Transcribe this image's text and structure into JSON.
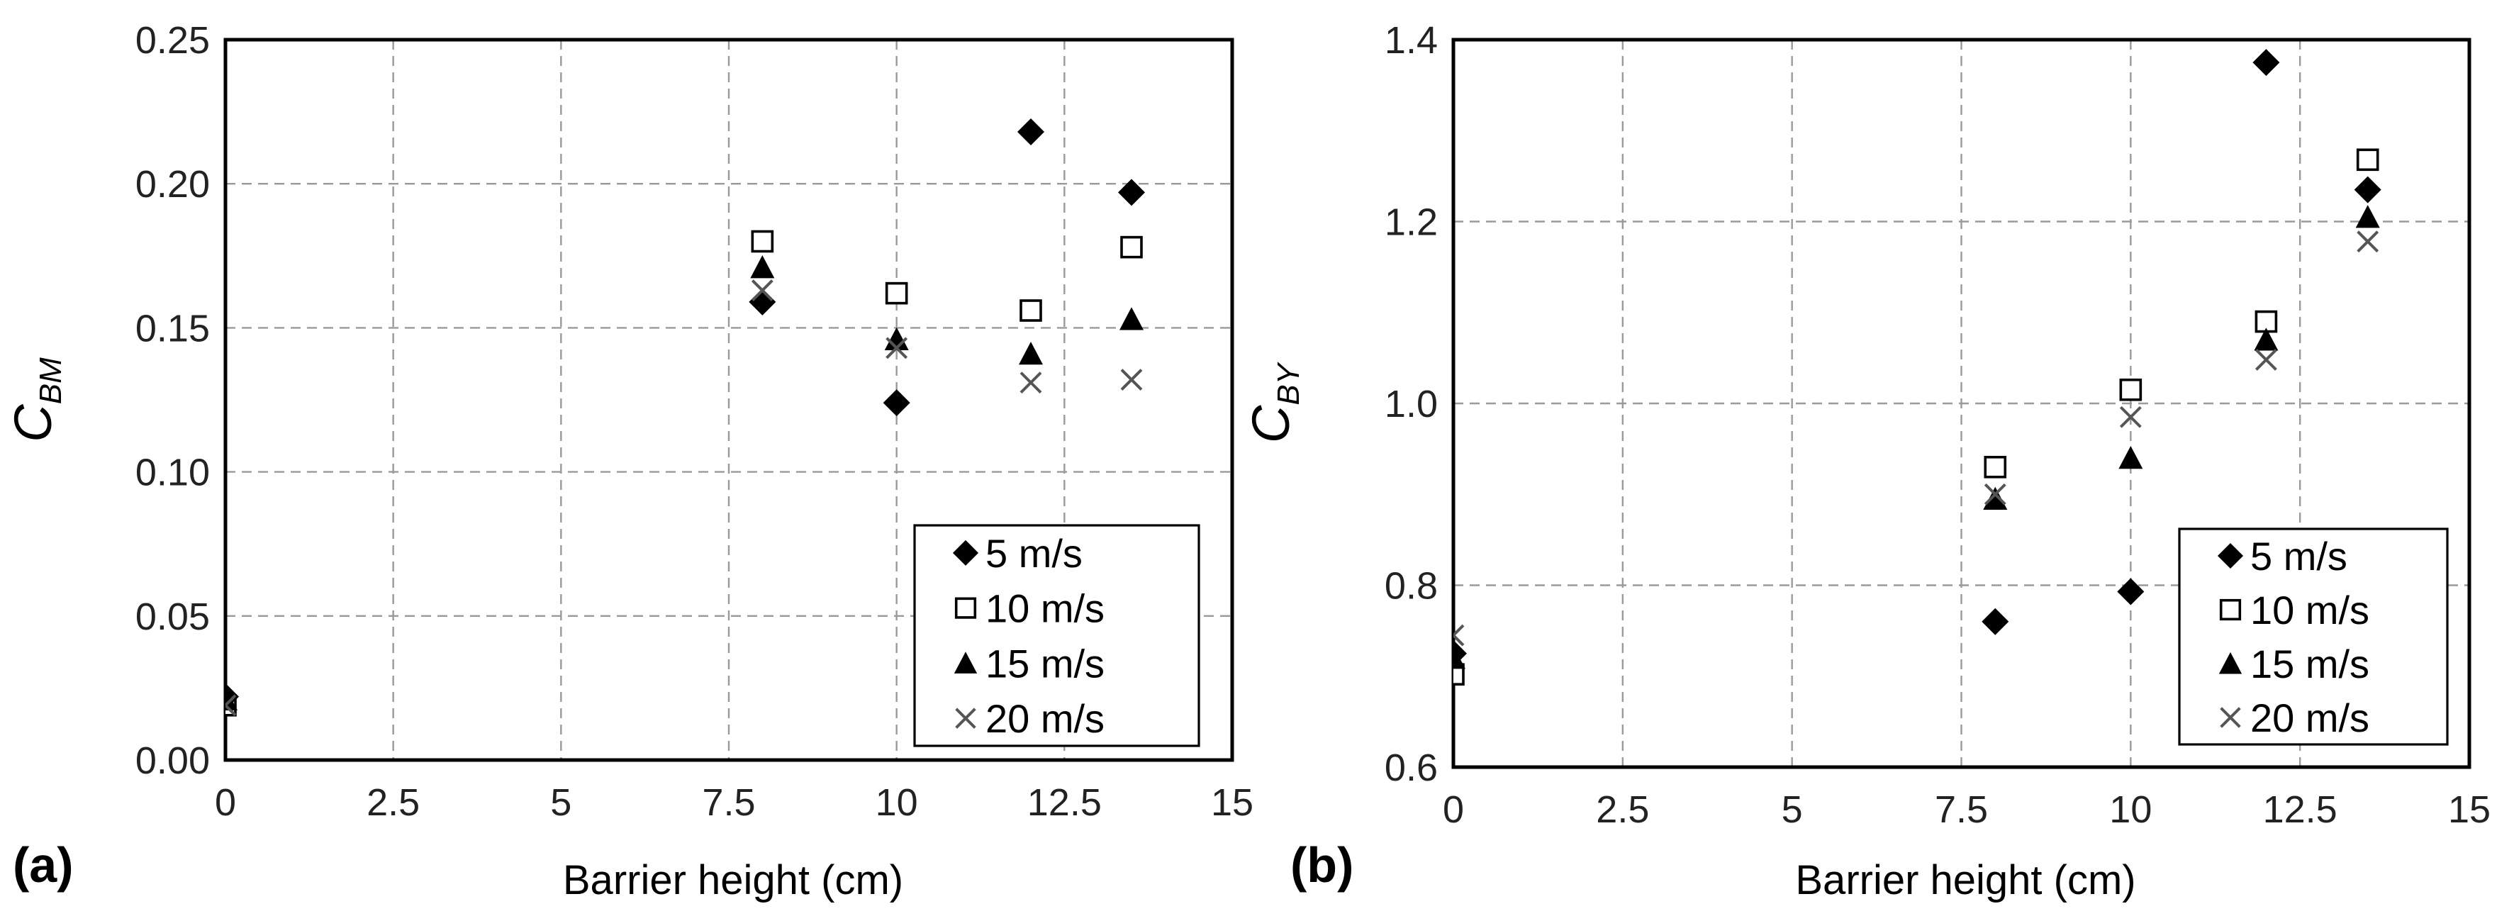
{
  "chart_data": [
    {
      "type": "scatter",
      "panel_label": "(a)",
      "xlabel": "Barrier height (cm)",
      "ylabel_base": "C",
      "ylabel_sub": "BM",
      "xlim": [
        0,
        15
      ],
      "ylim": [
        0,
        0.25
      ],
      "xticks": [
        "0",
        "2.5",
        "5",
        "7.5",
        "10",
        "12.5",
        "15"
      ],
      "xtick_values": [
        0,
        2.5,
        5,
        7.5,
        10,
        12.5,
        15
      ],
      "yticks": [
        "0.00",
        "0.05",
        "0.10",
        "0.15",
        "0.20",
        "0.25"
      ],
      "ytick_values": [
        0,
        0.05,
        0.1,
        0.15,
        0.2,
        0.25
      ],
      "grid": true,
      "legend_position": "bottom-right",
      "series": [
        {
          "name": "5 m/s",
          "marker": "diamond",
          "x": [
            0,
            8,
            10,
            12,
            13.5
          ],
          "y": [
            0.022,
            0.159,
            0.124,
            0.218,
            0.197
          ]
        },
        {
          "name": "10 m/s",
          "marker": "square",
          "x": [
            0,
            8,
            10,
            12,
            13.5
          ],
          "y": [
            0.019,
            0.18,
            0.162,
            0.156,
            0.178
          ]
        },
        {
          "name": "15 m/s",
          "marker": "triangle",
          "x": [
            0,
            8,
            10,
            12,
            13.5
          ],
          "y": [
            0.021,
            0.171,
            0.146,
            0.141,
            0.153
          ]
        },
        {
          "name": "20 m/s",
          "marker": "cross",
          "x": [
            0,
            8,
            10,
            12,
            13.5
          ],
          "y": [
            0.019,
            0.163,
            0.143,
            0.131,
            0.132
          ]
        }
      ]
    },
    {
      "type": "scatter",
      "panel_label": "(b)",
      "xlabel": "Barrier height (cm)",
      "ylabel_base": "C",
      "ylabel_sub": "BY",
      "xlim": [
        0,
        15
      ],
      "ylim": [
        0.6,
        1.4
      ],
      "xticks": [
        "0",
        "2.5",
        "5",
        "7.5",
        "10",
        "12.5",
        "15"
      ],
      "xtick_values": [
        0,
        2.5,
        5,
        7.5,
        10,
        12.5,
        15
      ],
      "yticks": [
        "0.6",
        "0.8",
        "1.0",
        "1.2",
        "1.4"
      ],
      "ytick_values": [
        0.6,
        0.8,
        1.0,
        1.2,
        1.4
      ],
      "grid": true,
      "legend_position": "bottom-right",
      "series": [
        {
          "name": "5 m/s",
          "marker": "diamond",
          "x": [
            0,
            8,
            10,
            12,
            13.5
          ],
          "y": [
            0.725,
            0.76,
            0.793,
            1.375,
            1.235
          ]
        },
        {
          "name": "10 m/s",
          "marker": "square",
          "x": [
            0,
            8,
            10,
            12,
            13.5
          ],
          "y": [
            0.702,
            0.93,
            1.015,
            1.09,
            1.268
          ]
        },
        {
          "name": "15 m/s",
          "marker": "triangle",
          "x": [
            0,
            8,
            10,
            12,
            13.5
          ],
          "y": [
            0.72,
            0.895,
            0.94,
            1.07,
            1.205
          ]
        },
        {
          "name": "20 m/s",
          "marker": "cross",
          "x": [
            0,
            8,
            10,
            12,
            13.5
          ],
          "y": [
            0.745,
            0.9,
            0.985,
            1.048,
            1.178
          ]
        }
      ]
    }
  ]
}
